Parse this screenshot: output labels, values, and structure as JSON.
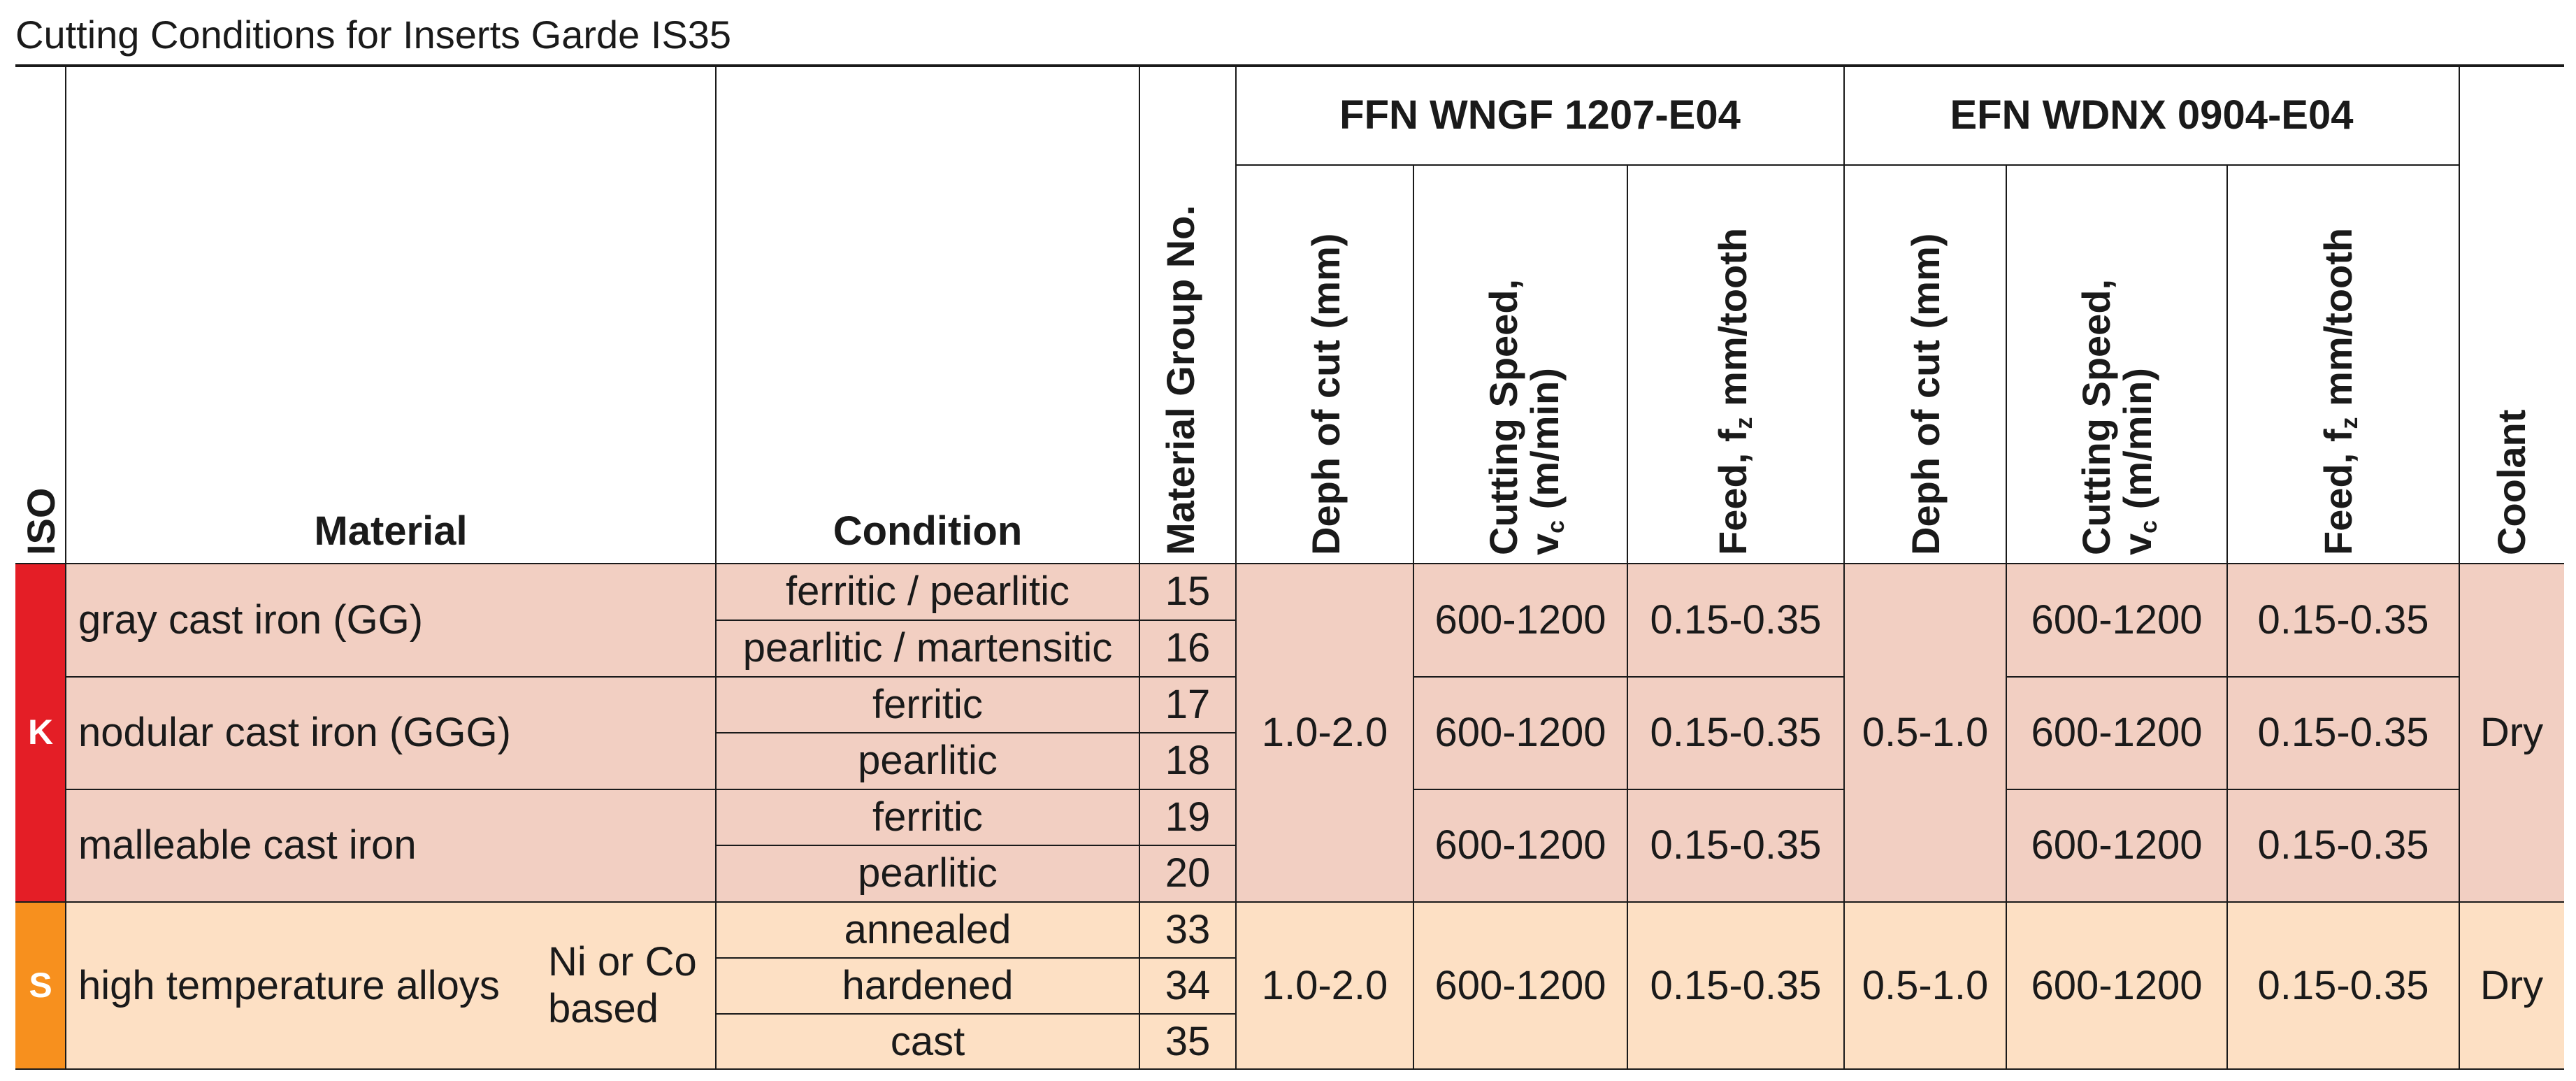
{
  "title": "Cutting Conditions for Inserts Garde IS35",
  "headers": {
    "iso": "ISO",
    "material": "Material",
    "condition": "Condition",
    "material_group": "Material Group No.",
    "group1": "FFN WNGF 1207-E04",
    "group2": "EFN WDNX 0904-E04",
    "depth": "Deph of cut (mm)",
    "speed_line1": "Cutting Speed,",
    "speed_v": "v",
    "speed_sub": "c",
    "speed_unit": " (m/min)",
    "feed_pre": "Feed, f",
    "feed_sub": "z",
    "feed_unit": " mm/tooth",
    "coolant": "Coolant"
  },
  "sections": {
    "K": {
      "iso": "K",
      "materials": [
        "gray cast iron (GG)",
        "nodular cast iron (GGG)",
        "malleable cast iron"
      ],
      "conditions": [
        "ferritic / pearlitic",
        "pearlitic / martensitic",
        "ferritic",
        "pearlitic",
        "ferritic",
        "pearlitic"
      ],
      "groups": [
        "15",
        "16",
        "17",
        "18",
        "19",
        "20"
      ],
      "depth1": "1.0-2.0",
      "speed1": [
        "600-1200",
        "600-1200",
        "600-1200"
      ],
      "feed1": [
        "0.15-0.35",
        "0.15-0.35",
        "0.15-0.35"
      ],
      "depth2": "0.5-1.0",
      "speed2": [
        "600-1200",
        "600-1200",
        "600-1200"
      ],
      "feed2": [
        "0.15-0.35",
        "0.15-0.35",
        "0.15-0.35"
      ],
      "coolant": "Dry"
    },
    "S": {
      "iso": "S",
      "material": "high temperature alloys",
      "material_note": "Ni or Co based",
      "conditions": [
        "annealed",
        "hardened",
        "cast"
      ],
      "groups": [
        "33",
        "34",
        "35"
      ],
      "depth1": "1.0-2.0",
      "speed1": "600-1200",
      "feed1": "0.15-0.35",
      "depth2": "0.5-1.0",
      "speed2": "600-1200",
      "feed2": "0.15-0.35",
      "coolant": "Dry"
    }
  },
  "colors": {
    "k_accent": "#e41e26",
    "k_row": "#f2cfc2",
    "s_accent": "#f7901e",
    "s_row": "#fde0c4"
  }
}
